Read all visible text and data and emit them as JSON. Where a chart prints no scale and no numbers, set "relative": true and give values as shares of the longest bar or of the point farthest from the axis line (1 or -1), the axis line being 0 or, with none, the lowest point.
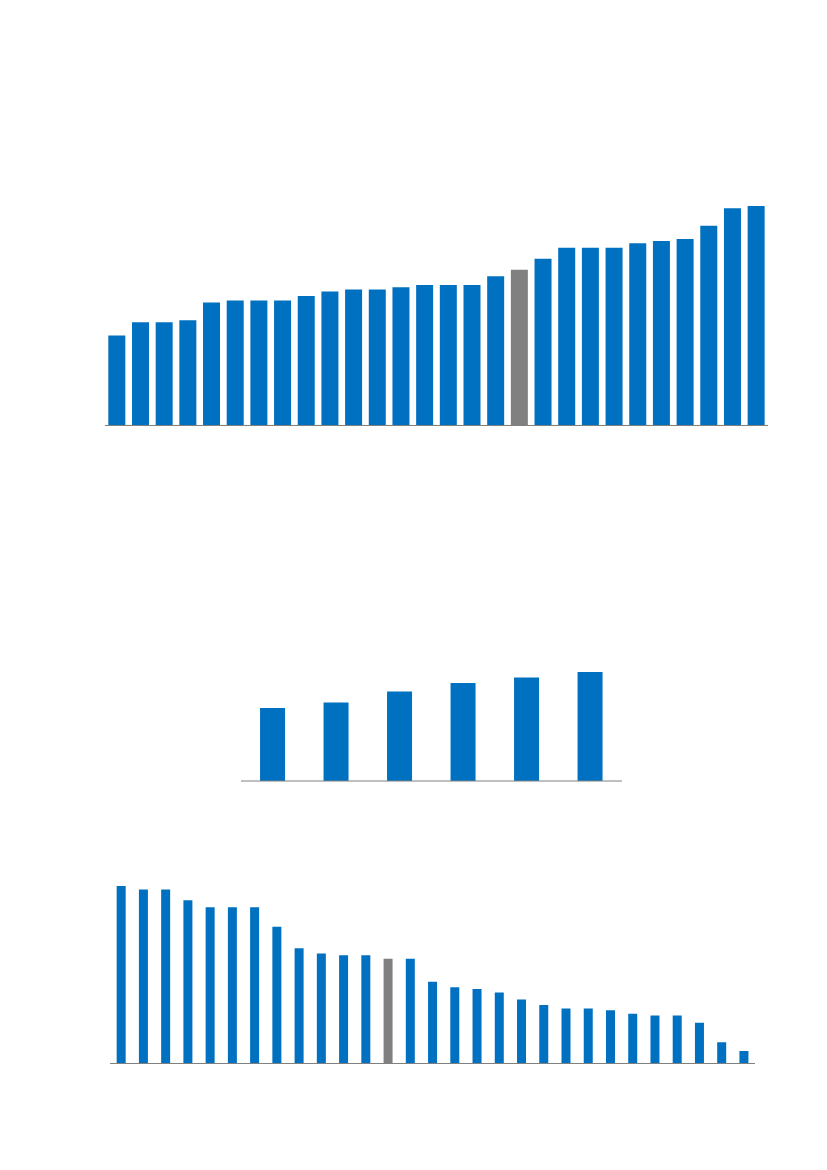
{
  "chart_data": [
    {
      "type": "bar",
      "relative": true,
      "categories": [
        null,
        null,
        null,
        null,
        null,
        null,
        null,
        null,
        null,
        null,
        null,
        null,
        null,
        null,
        null,
        null,
        null,
        null,
        null,
        null,
        null,
        null,
        null,
        null,
        null,
        null,
        null,
        null
      ],
      "values": [
        0.41,
        0.47,
        0.47,
        0.48,
        0.56,
        0.57,
        0.57,
        0.57,
        0.59,
        0.61,
        0.62,
        0.62,
        0.63,
        0.64,
        0.64,
        0.64,
        0.68,
        0.71,
        0.76,
        0.81,
        0.81,
        0.81,
        0.83,
        0.84,
        0.85,
        0.91,
        0.99,
        1
      ],
      "colors": [
        "#0070c0",
        "#0070c0",
        "#0070c0",
        "#0070c0",
        "#0070c0",
        "#0070c0",
        "#0070c0",
        "#0070c0",
        "#0070c0",
        "#0070c0",
        "#0070c0",
        "#0070c0",
        "#0070c0",
        "#0070c0",
        "#0070c0",
        "#0070c0",
        "#0070c0",
        "#808080",
        "#0070c0",
        "#0070c0",
        "#0070c0",
        "#0070c0",
        "#0070c0",
        "#0070c0",
        "#0070c0",
        "#0070c0",
        "#0070c0",
        "#0070c0"
      ]
    },
    {
      "type": "bar",
      "relative": true,
      "categories": [
        null,
        null,
        null,
        null,
        null,
        null
      ],
      "values": [
        0.67,
        0.72,
        0.82,
        0.9,
        0.95,
        1
      ],
      "colors": [
        "#0070c0",
        "#0070c0",
        "#0070c0",
        "#0070c0",
        "#0070c0",
        "#0070c0"
      ]
    },
    {
      "type": "bar",
      "relative": true,
      "categories": [
        null,
        null,
        null,
        null,
        null,
        null,
        null,
        null,
        null,
        null,
        null,
        null,
        null,
        null,
        null,
        null,
        null,
        null,
        null,
        null,
        null,
        null,
        null,
        null,
        null,
        null,
        null,
        null,
        null
      ],
      "values": [
        1,
        0.98,
        0.98,
        0.92,
        0.88,
        0.88,
        0.88,
        0.77,
        0.65,
        0.62,
        0.61,
        0.61,
        0.59,
        0.59,
        0.46,
        0.43,
        0.42,
        0.4,
        0.36,
        0.33,
        0.31,
        0.31,
        0.3,
        0.28,
        0.27,
        0.27,
        0.23,
        0.12,
        0.07
      ],
      "colors": [
        "#0070c0",
        "#0070c0",
        "#0070c0",
        "#0070c0",
        "#0070c0",
        "#0070c0",
        "#0070c0",
        "#0070c0",
        "#0070c0",
        "#0070c0",
        "#0070c0",
        "#0070c0",
        "#808080",
        "#0070c0",
        "#0070c0",
        "#0070c0",
        "#0070c0",
        "#0070c0",
        "#0070c0",
        "#0070c0",
        "#0070c0",
        "#0070c0",
        "#0070c0",
        "#0070c0",
        "#0070c0",
        "#0070c0",
        "#0070c0",
        "#0070c0",
        "#0070c0"
      ]
    }
  ]
}
